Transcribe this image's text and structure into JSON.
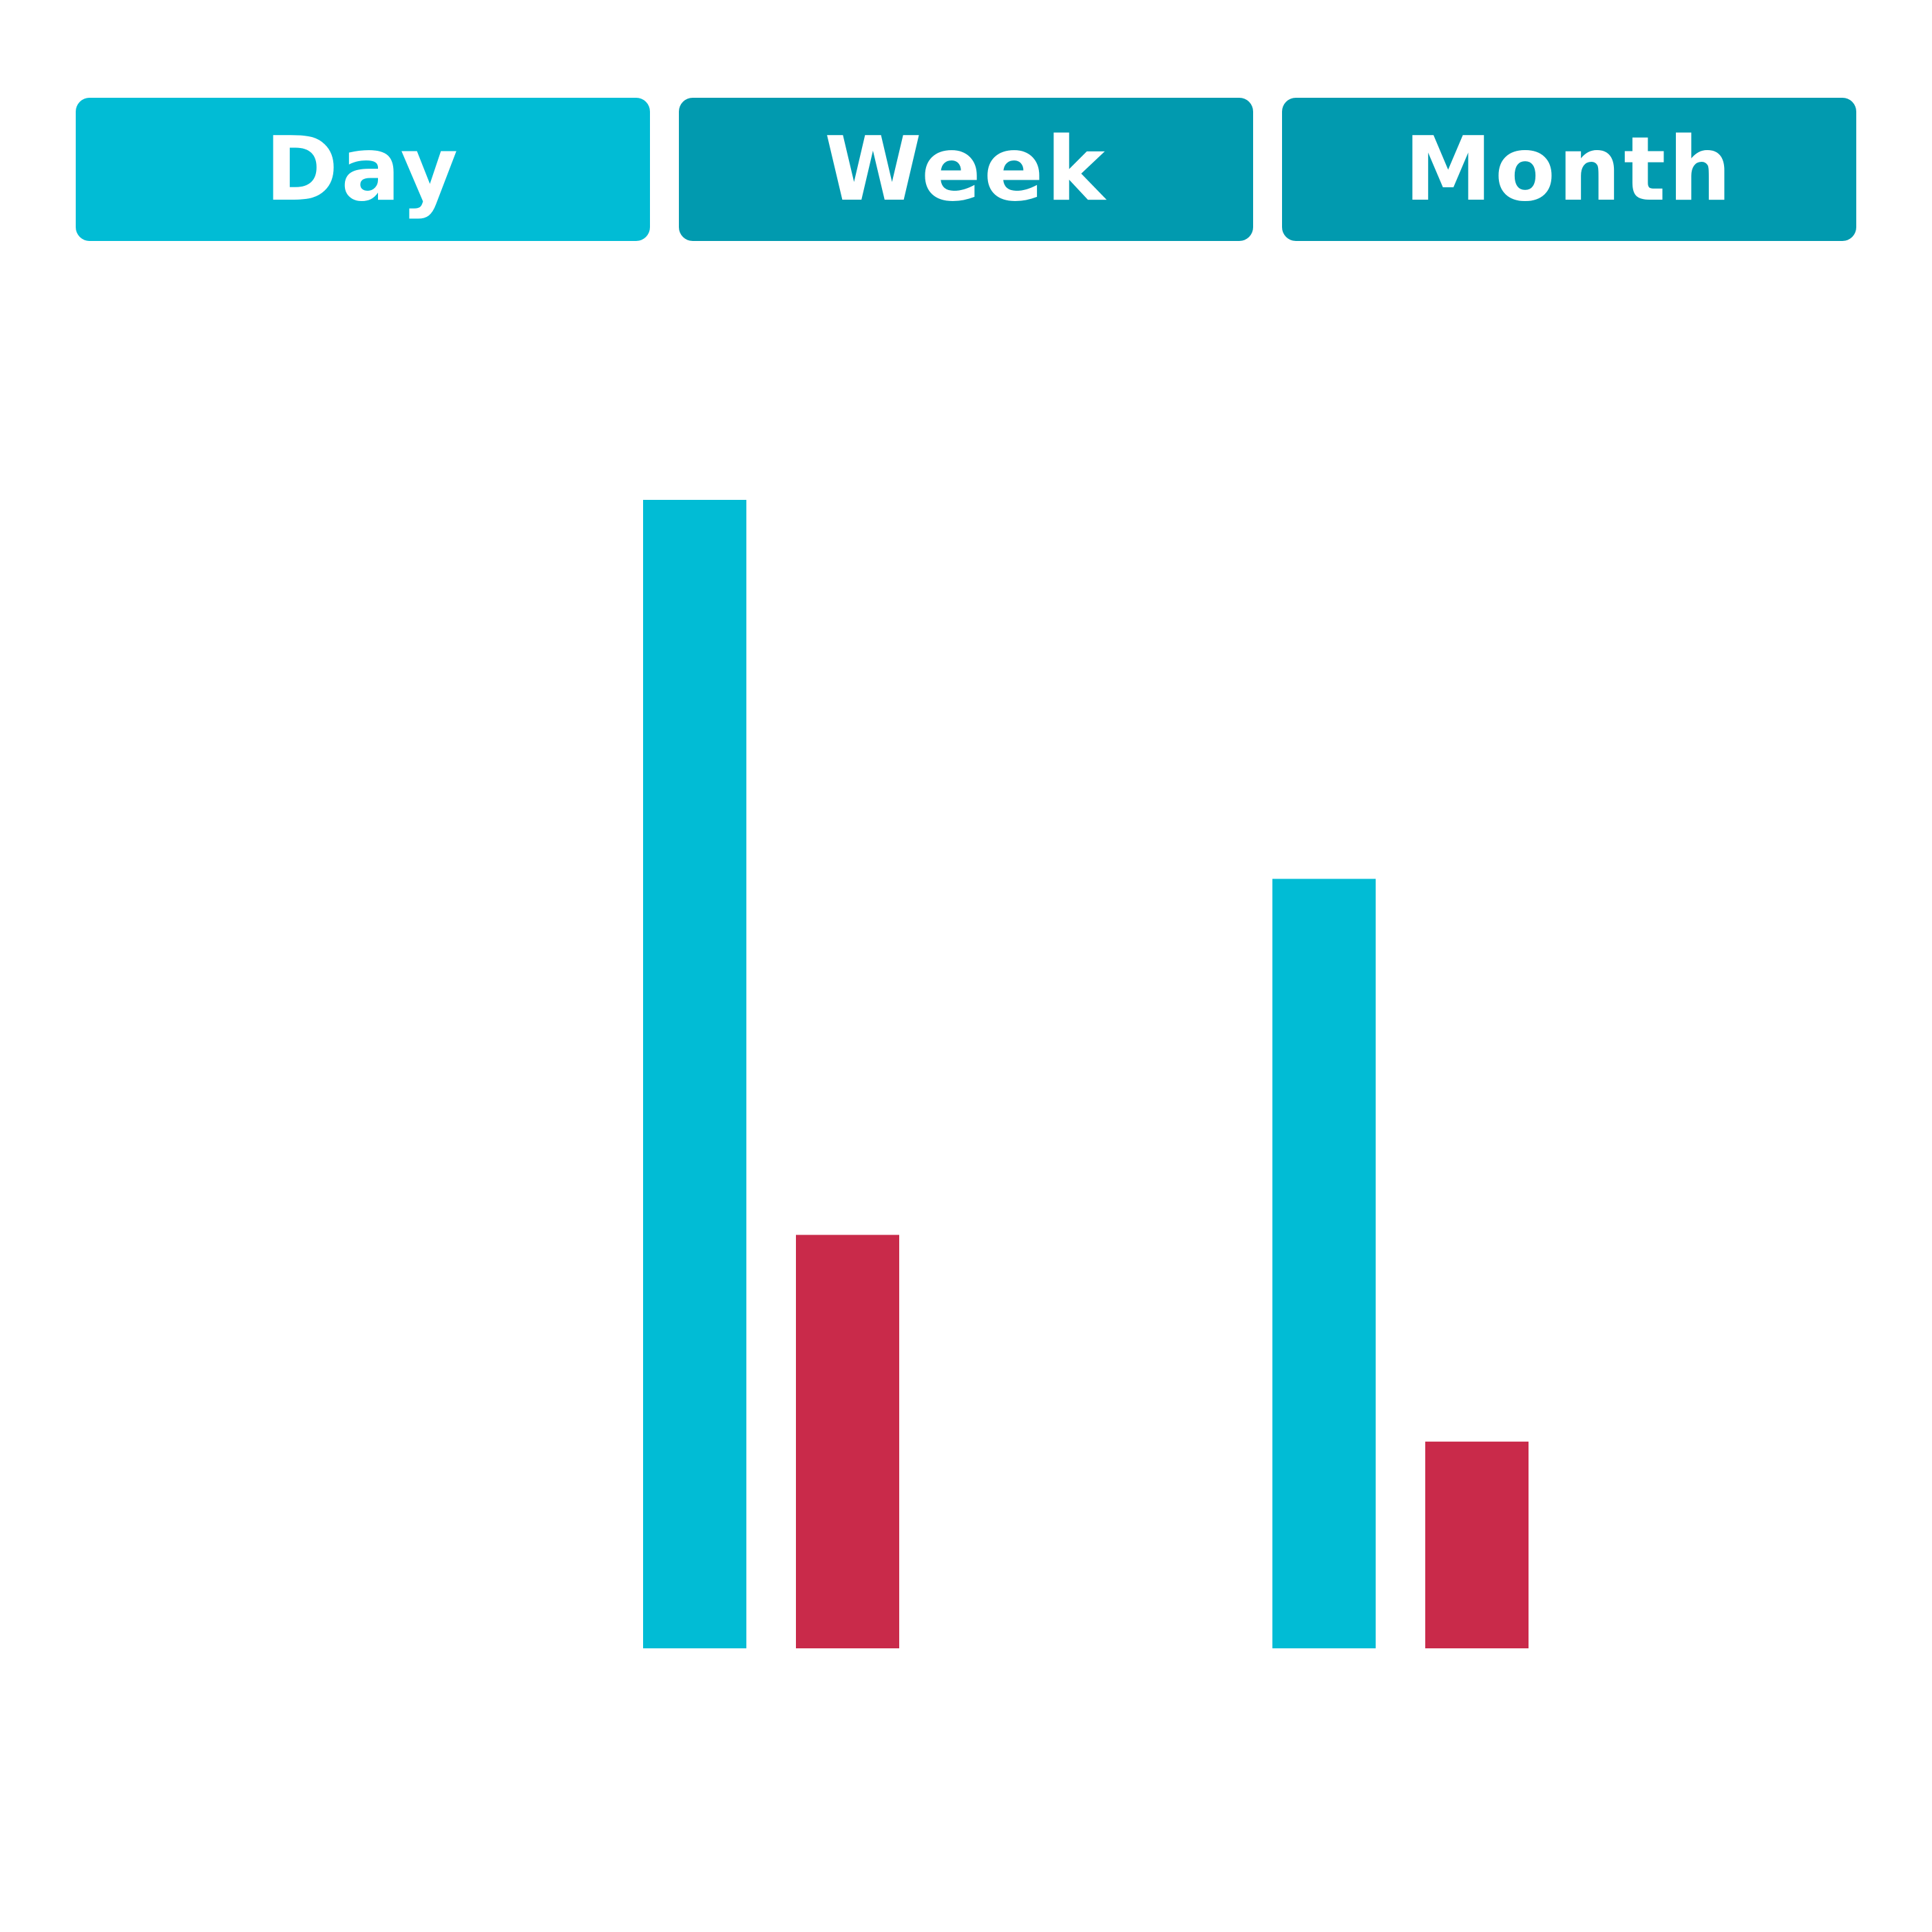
{
  "tabs": {
    "items": [
      {
        "label": "Day",
        "active": true
      },
      {
        "label": "Week",
        "active": false
      },
      {
        "label": "Month",
        "active": false
      }
    ],
    "active_color": "#01bcd5",
    "inactive_color": "#019aaf"
  },
  "chart_data": {
    "type": "bar",
    "title": "",
    "xlabel": "",
    "ylabel": "",
    "categories": [
      "",
      ""
    ],
    "series": [
      {
        "color": "#01bcd5",
        "values": [
          100,
          67
        ]
      },
      {
        "color": "#c92a4a",
        "values": [
          36,
          18
        ]
      }
    ],
    "ylim": [
      0,
      100
    ],
    "grid": false,
    "legend": "none"
  }
}
